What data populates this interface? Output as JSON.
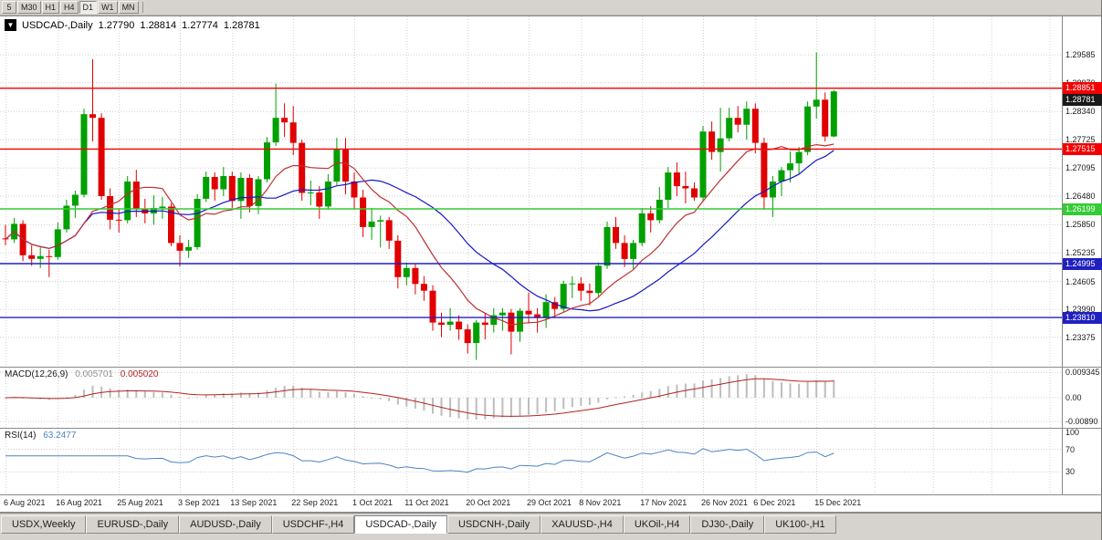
{
  "colors": {
    "up": "#00A000",
    "down": "#E00000",
    "grid": "#CFCFCF",
    "ma_fast": "#C03030",
    "ma_slow": "#1515C8",
    "macd_hist": "#BDBDBD",
    "macd_signal": "#B22222",
    "rsi": "#4C83C4",
    "separator": "#8A8A8A",
    "line_red": "#F40000",
    "line_green": "#33CC33",
    "line_blue": "#2020C0"
  },
  "toolbar": {
    "timeframes": [
      {
        "label": "5",
        "active": false
      },
      {
        "label": "M30",
        "active": false
      },
      {
        "label": "H1",
        "active": false
      },
      {
        "label": "H4",
        "active": false
      },
      {
        "label": "D1",
        "active": true
      },
      {
        "label": "W1",
        "active": false
      },
      {
        "label": "MN",
        "active": false
      }
    ]
  },
  "chart_header": {
    "collapse_icon": "▼",
    "symbol": "USDCAD-,Daily",
    "open": "1.27790",
    "high": "1.28814",
    "low": "1.27774",
    "close": "1.28781"
  },
  "price_axis": {
    "labels": [
      "1.29585",
      "1.28970",
      "1.28340",
      "1.27725",
      "1.27095",
      "1.26480",
      "1.25850",
      "1.25235",
      "1.24605",
      "1.23990",
      "1.23375"
    ]
  },
  "levels": [
    {
      "value": "1.28851",
      "price": 1.28851,
      "color": "#F40000",
      "line": true,
      "name": "resistance-upper"
    },
    {
      "value": "1.28781",
      "price": 1.28781,
      "color": "#1a1a1a",
      "line": false,
      "name": "bid-price"
    },
    {
      "value": "1.27515",
      "price": 1.27515,
      "color": "#F40000",
      "line": true,
      "name": "resistance-lower"
    },
    {
      "value": "1.26199",
      "price": 1.26199,
      "color": "#33CC33",
      "line": true,
      "name": "support-mid"
    },
    {
      "value": "1.24995",
      "price": 1.24995,
      "color": "#2020C0",
      "line": true,
      "name": "support-1"
    },
    {
      "value": "1.23810",
      "price": 1.2381,
      "color": "#2020C0",
      "line": true,
      "name": "support-2"
    }
  ],
  "macd": {
    "label": "MACD(12,26,9)",
    "main": "0.005701",
    "signal": "0.005020",
    "axis": [
      {
        "label": "0.009345",
        "value": 0.009345
      },
      {
        "label": "0.00",
        "value": 0
      },
      {
        "label": "-0.00890",
        "value": -0.0089
      }
    ]
  },
  "rsi": {
    "label": "RSI(14)",
    "value": "63.2477",
    "axis": [
      {
        "label": "100",
        "value": 100
      },
      {
        "label": "70",
        "value": 70
      },
      {
        "label": "30",
        "value": 30
      }
    ],
    "levels": [
      70,
      30
    ]
  },
  "date_axis": {
    "ticks": [
      {
        "label": "6 Aug 2021",
        "index": 0
      },
      {
        "label": "16 Aug 2021",
        "index": 6
      },
      {
        "label": "25 Aug 2021",
        "index": 13
      },
      {
        "label": "3 Sep 2021",
        "index": 20
      },
      {
        "label": "13 Sep 2021",
        "index": 26
      },
      {
        "label": "22 Sep 2021",
        "index": 33
      },
      {
        "label": "1 Oct 2021",
        "index": 40
      },
      {
        "label": "11 Oct 2021",
        "index": 46
      },
      {
        "label": "20 Oct 2021",
        "index": 53
      },
      {
        "label": "29 Oct 2021",
        "index": 60
      },
      {
        "label": "8 Nov 2021",
        "index": 66
      },
      {
        "label": "17 Nov 2021",
        "index": 73
      },
      {
        "label": "26 Nov 2021",
        "index": 80
      },
      {
        "label": "6 Dec 2021",
        "index": 86
      },
      {
        "label": "15 Dec 2021",
        "index": 93
      }
    ]
  },
  "tabs": [
    {
      "label": "USDX,Weekly",
      "active": false
    },
    {
      "label": "EURUSD-,Daily",
      "active": false
    },
    {
      "label": "AUDUSD-,Daily",
      "active": false
    },
    {
      "label": "USDCHF-,H4",
      "active": false
    },
    {
      "label": "USDCAD-,Daily",
      "active": true
    },
    {
      "label": "USDCNH-,Daily",
      "active": false
    },
    {
      "label": "XAUUSD-,H4",
      "active": false
    },
    {
      "label": "UKOil-,H4",
      "active": false
    },
    {
      "label": "DJ30-,Daily",
      "active": false
    },
    {
      "label": "UK100-,H1",
      "active": false
    }
  ],
  "chart_data": {
    "type": "candlestick",
    "title": "USDCAD-,Daily",
    "ylim": [
      1.2273,
      1.3043
    ],
    "hlines": [
      1.28851,
      1.27515,
      1.26199,
      1.24995,
      1.2381
    ],
    "overlays": [
      {
        "name": "ma-fast",
        "type": "sma",
        "period": 10
      },
      {
        "name": "ma-slow",
        "type": "sma",
        "period": 21
      }
    ],
    "indicators": [
      {
        "name": "MACD",
        "params": [
          12,
          26,
          9
        ],
        "ylim": [
          -0.0105,
          0.0105
        ],
        "last_main": 0.005701,
        "last_signal": 0.00502
      },
      {
        "name": "RSI",
        "params": [
          14
        ],
        "ylim": [
          0,
          100
        ],
        "levels": [
          70,
          30
        ],
        "last": 63.2477
      }
    ],
    "candles": [
      [
        1.2555,
        1.2585,
        1.254,
        1.2553
      ],
      [
        1.2553,
        1.26,
        1.2545,
        1.2587
      ],
      [
        1.2587,
        1.2595,
        1.2505,
        1.2518
      ],
      [
        1.2518,
        1.254,
        1.2495,
        1.251
      ],
      [
        1.251,
        1.2535,
        1.249,
        1.2516
      ],
      [
        1.2516,
        1.253,
        1.247,
        1.2514
      ],
      [
        1.2514,
        1.259,
        1.2508,
        1.2575
      ],
      [
        1.2575,
        1.264,
        1.2568,
        1.2627
      ],
      [
        1.2627,
        1.266,
        1.26,
        1.2651
      ],
      [
        1.2651,
        1.284,
        1.2645,
        1.2828
      ],
      [
        1.2828,
        1.2949,
        1.2768,
        1.282
      ],
      [
        1.282,
        1.283,
        1.264,
        1.2648
      ],
      [
        1.2648,
        1.2665,
        1.2575,
        1.2596
      ],
      [
        1.2596,
        1.262,
        1.2568,
        1.2595
      ],
      [
        1.2595,
        1.2692,
        1.2588,
        1.268
      ],
      [
        1.268,
        1.2706,
        1.2602,
        1.262
      ],
      [
        1.262,
        1.2642,
        1.2588,
        1.261
      ],
      [
        1.261,
        1.265,
        1.2585,
        1.2622
      ],
      [
        1.2622,
        1.2646,
        1.2598,
        1.2625
      ],
      [
        1.2625,
        1.2632,
        1.2538,
        1.2545
      ],
      [
        1.2545,
        1.2562,
        1.2493,
        1.2528
      ],
      [
        1.2528,
        1.2552,
        1.2512,
        1.2536
      ],
      [
        1.2536,
        1.2652,
        1.253,
        1.2642
      ],
      [
        1.2642,
        1.2702,
        1.2635,
        1.269
      ],
      [
        1.269,
        1.27,
        1.2638,
        1.2663
      ],
      [
        1.2663,
        1.2712,
        1.2648,
        1.2692
      ],
      [
        1.2692,
        1.2702,
        1.2622,
        1.2637
      ],
      [
        1.2637,
        1.27,
        1.2598,
        1.2688
      ],
      [
        1.2688,
        1.2696,
        1.2612,
        1.2626
      ],
      [
        1.2626,
        1.2692,
        1.2608,
        1.2685
      ],
      [
        1.2685,
        1.2778,
        1.2678,
        1.2766
      ],
      [
        1.2766,
        1.2895,
        1.2758,
        1.282
      ],
      [
        1.282,
        1.2852,
        1.2778,
        1.281
      ],
      [
        1.281,
        1.2846,
        1.2738,
        1.2765
      ],
      [
        1.2765,
        1.2772,
        1.2638,
        1.2655
      ],
      [
        1.2655,
        1.2682,
        1.2628,
        1.2656
      ],
      [
        1.2656,
        1.267,
        1.2598,
        1.2625
      ],
      [
        1.2625,
        1.2696,
        1.2618,
        1.268
      ],
      [
        1.268,
        1.2776,
        1.2672,
        1.275
      ],
      [
        1.275,
        1.2776,
        1.2652,
        1.268
      ],
      [
        1.268,
        1.27,
        1.2618,
        1.2645
      ],
      [
        1.2645,
        1.2662,
        1.2558,
        1.258
      ],
      [
        1.258,
        1.2622,
        1.2552,
        1.2592
      ],
      [
        1.2592,
        1.2605,
        1.2535,
        1.2595
      ],
      [
        1.2595,
        1.2602,
        1.2532,
        1.255
      ],
      [
        1.255,
        1.2562,
        1.2445,
        1.247
      ],
      [
        1.247,
        1.2502,
        1.2452,
        1.249
      ],
      [
        1.249,
        1.25,
        1.2432,
        1.2455
      ],
      [
        1.2455,
        1.2472,
        1.2418,
        1.244
      ],
      [
        1.244,
        1.2452,
        1.2352,
        1.237
      ],
      [
        1.237,
        1.2392,
        1.2338,
        1.2365
      ],
      [
        1.2365,
        1.2402,
        1.2352,
        1.2372
      ],
      [
        1.2372,
        1.2386,
        1.2332,
        1.2355
      ],
      [
        1.2355,
        1.2366,
        1.2302,
        1.2325
      ],
      [
        1.2325,
        1.2376,
        1.2288,
        1.237
      ],
      [
        1.237,
        1.2392,
        1.2333,
        1.2365
      ],
      [
        1.2365,
        1.2402,
        1.2348,
        1.2386
      ],
      [
        1.2386,
        1.2402,
        1.2352,
        1.2392
      ],
      [
        1.2392,
        1.24,
        1.23,
        1.235
      ],
      [
        1.235,
        1.2402,
        1.2328,
        1.2396
      ],
      [
        1.2396,
        1.2436,
        1.2368,
        1.2388
      ],
      [
        1.2388,
        1.2402,
        1.2348,
        1.238
      ],
      [
        1.238,
        1.2432,
        1.2358,
        1.2415
      ],
      [
        1.2415,
        1.2426,
        1.2382,
        1.24
      ],
      [
        1.24,
        1.2462,
        1.2394,
        1.2455
      ],
      [
        1.2455,
        1.2472,
        1.2424,
        1.2456
      ],
      [
        1.2456,
        1.247,
        1.2418,
        1.244
      ],
      [
        1.244,
        1.2456,
        1.2408,
        1.2435
      ],
      [
        1.2435,
        1.2502,
        1.2428,
        1.2495
      ],
      [
        1.2495,
        1.2592,
        1.2488,
        1.258
      ],
      [
        1.258,
        1.2602,
        1.2532,
        1.2545
      ],
      [
        1.2545,
        1.2562,
        1.2492,
        1.251
      ],
      [
        1.251,
        1.2552,
        1.2488,
        1.2545
      ],
      [
        1.2545,
        1.2622,
        1.2538,
        1.261
      ],
      [
        1.261,
        1.2626,
        1.2568,
        1.2595
      ],
      [
        1.2595,
        1.2668,
        1.2588,
        1.264
      ],
      [
        1.264,
        1.2712,
        1.2622,
        1.27
      ],
      [
        1.27,
        1.2722,
        1.2648,
        1.267
      ],
      [
        1.267,
        1.2702,
        1.2632,
        1.2665
      ],
      [
        1.2665,
        1.2678,
        1.2638,
        1.2645
      ],
      [
        1.2645,
        1.2802,
        1.2638,
        1.279
      ],
      [
        1.279,
        1.2812,
        1.2728,
        1.2745
      ],
      [
        1.2745,
        1.2842,
        1.2702,
        1.2775
      ],
      [
        1.2775,
        1.2842,
        1.2768,
        1.282
      ],
      [
        1.282,
        1.2846,
        1.2788,
        1.2805
      ],
      [
        1.2805,
        1.2856,
        1.2772,
        1.284
      ],
      [
        1.284,
        1.2852,
        1.2742,
        1.2765
      ],
      [
        1.2765,
        1.2776,
        1.2618,
        1.2645
      ],
      [
        1.2645,
        1.2692,
        1.2602,
        1.268
      ],
      [
        1.268,
        1.2712,
        1.2648,
        1.2705
      ],
      [
        1.2705,
        1.2746,
        1.2678,
        1.272
      ],
      [
        1.272,
        1.2756,
        1.2698,
        1.2745
      ],
      [
        1.2745,
        1.2856,
        1.2738,
        1.2845
      ],
      [
        1.2845,
        1.2964,
        1.2818,
        1.286
      ],
      [
        1.286,
        1.2876,
        1.2768,
        1.2779
      ],
      [
        1.2779,
        1.28814,
        1.27774,
        1.28781
      ]
    ]
  }
}
